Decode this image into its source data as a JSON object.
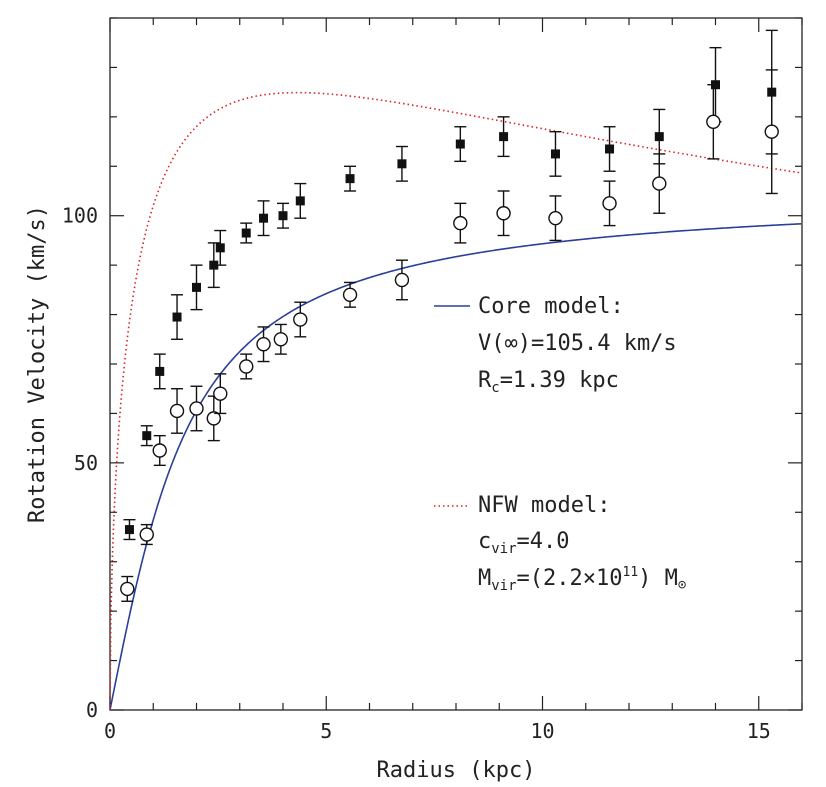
{
  "chart_data": {
    "type": "scatter",
    "xlabel": "Radius (kpc)",
    "ylabel": "Rotation Velocity (km/s)",
    "xlim": [
      0,
      16
    ],
    "ylim": [
      0,
      140
    ],
    "xticks": [
      0,
      5,
      10,
      15
    ],
    "yticks": [
      0,
      50,
      100
    ],
    "grid": false,
    "series": [
      {
        "marker": "filled-square",
        "color": "#111111",
        "points": [
          {
            "x": 0.45,
            "y": 36.5,
            "err": 2.0
          },
          {
            "x": 0.85,
            "y": 55.5,
            "err": 2.0
          },
          {
            "x": 1.15,
            "y": 68.5,
            "err": 3.5
          },
          {
            "x": 1.55,
            "y": 79.5,
            "err": 4.5
          },
          {
            "x": 2.0,
            "y": 85.5,
            "err": 4.5
          },
          {
            "x": 2.4,
            "y": 90.0,
            "err": 4.5
          },
          {
            "x": 2.55,
            "y": 93.5,
            "err": 3.5
          },
          {
            "x": 3.15,
            "y": 96.5,
            "err": 2.0
          },
          {
            "x": 3.55,
            "y": 99.5,
            "err": 3.5
          },
          {
            "x": 4.0,
            "y": 100.0,
            "err": 2.5
          },
          {
            "x": 4.4,
            "y": 103.0,
            "err": 3.5
          },
          {
            "x": 5.55,
            "y": 107.5,
            "err": 2.5
          },
          {
            "x": 6.75,
            "y": 110.5,
            "err": 3.5
          },
          {
            "x": 8.1,
            "y": 114.5,
            "err": 3.5
          },
          {
            "x": 9.1,
            "y": 116.0,
            "err": 4.0
          },
          {
            "x": 10.3,
            "y": 112.5,
            "err": 4.5
          },
          {
            "x": 11.55,
            "y": 113.5,
            "err": 4.5
          },
          {
            "x": 12.7,
            "y": 116.0,
            "err": 5.5
          },
          {
            "x": 14.0,
            "y": 126.5,
            "err": 7.5
          },
          {
            "x": 15.3,
            "y": 125.0,
            "err": 12.5
          }
        ]
      },
      {
        "marker": "open-circle",
        "color": "#111111",
        "points": [
          {
            "x": 0.4,
            "y": 24.5,
            "err": 2.5
          },
          {
            "x": 0.85,
            "y": 35.5,
            "err": 2.0
          },
          {
            "x": 1.15,
            "y": 52.5,
            "err": 3.0
          },
          {
            "x": 1.55,
            "y": 60.5,
            "err": 4.5
          },
          {
            "x": 2.0,
            "y": 61.0,
            "err": 4.5
          },
          {
            "x": 2.4,
            "y": 59.0,
            "err": 4.5
          },
          {
            "x": 2.55,
            "y": 64.0,
            "err": 4.0
          },
          {
            "x": 3.15,
            "y": 69.5,
            "err": 2.5
          },
          {
            "x": 3.55,
            "y": 74.0,
            "err": 3.5
          },
          {
            "x": 3.95,
            "y": 75.0,
            "err": 3.0
          },
          {
            "x": 4.4,
            "y": 79.0,
            "err": 3.5
          },
          {
            "x": 5.55,
            "y": 84.0,
            "err": 2.5
          },
          {
            "x": 6.75,
            "y": 87.0,
            "err": 4.0
          },
          {
            "x": 8.1,
            "y": 98.5,
            "err": 4.0
          },
          {
            "x": 9.1,
            "y": 100.5,
            "err": 4.5
          },
          {
            "x": 10.3,
            "y": 99.5,
            "err": 4.5
          },
          {
            "x": 11.55,
            "y": 102.5,
            "err": 4.5
          },
          {
            "x": 12.7,
            "y": 106.5,
            "err": 6.0
          },
          {
            "x": 13.95,
            "y": 119.0,
            "err": 7.5
          },
          {
            "x": 15.3,
            "y": 117.0,
            "err": 12.5
          }
        ]
      }
    ],
    "models": [
      {
        "kind": "core",
        "color": "#2b3f99",
        "style": "solid",
        "v_inf": 105.4,
        "r_c": 1.39,
        "legend": {
          "title": "Core model:",
          "line1": "V(∞)=105.4 km/s",
          "line2_prefix": "R",
          "line2_sub": "c",
          "line2_suffix": "=1.39 kpc"
        }
      },
      {
        "kind": "nfw",
        "color": "#dd2222",
        "style": "dotted",
        "c_vir": 4.0,
        "legend": {
          "title": "NFW model:",
          "line1_prefix": "c",
          "line1_sub": "vir",
          "line1_suffix": "=4.0",
          "line2_prefix": "M",
          "line2_sub": "vir",
          "line2_mid": "=(2.2×10",
          "line2_sup": "11",
          "line2_suffix": ") M",
          "line2_symbol": "⊙"
        }
      }
    ]
  }
}
